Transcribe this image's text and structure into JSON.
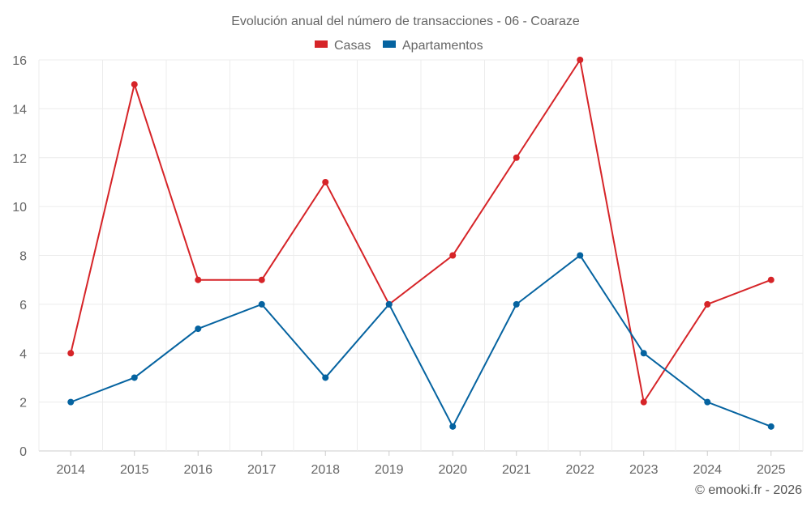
{
  "chart_data": {
    "type": "line",
    "title": "Evolución anual del número de transacciones - 06 - Coaraze",
    "categories": [
      "2014",
      "2015",
      "2016",
      "2017",
      "2018",
      "2019",
      "2020",
      "2021",
      "2022",
      "2023",
      "2024",
      "2025"
    ],
    "series": [
      {
        "name": "Casas",
        "color": "#d62428",
        "values": [
          4,
          15,
          7,
          7,
          11,
          6,
          8,
          12,
          16,
          2,
          6,
          7
        ]
      },
      {
        "name": "Apartamentos",
        "color": "#0563a0",
        "values": [
          2,
          3,
          5,
          6,
          3,
          6,
          1,
          6,
          8,
          4,
          2,
          1
        ]
      }
    ],
    "ylim": [
      0,
      16
    ],
    "yticks": [
      0,
      2,
      4,
      6,
      8,
      10,
      12,
      14,
      16
    ],
    "grid": true,
    "legend": "top-center",
    "xlabel": "",
    "ylabel": ""
  },
  "credit": "© emooki.fr - 2026"
}
